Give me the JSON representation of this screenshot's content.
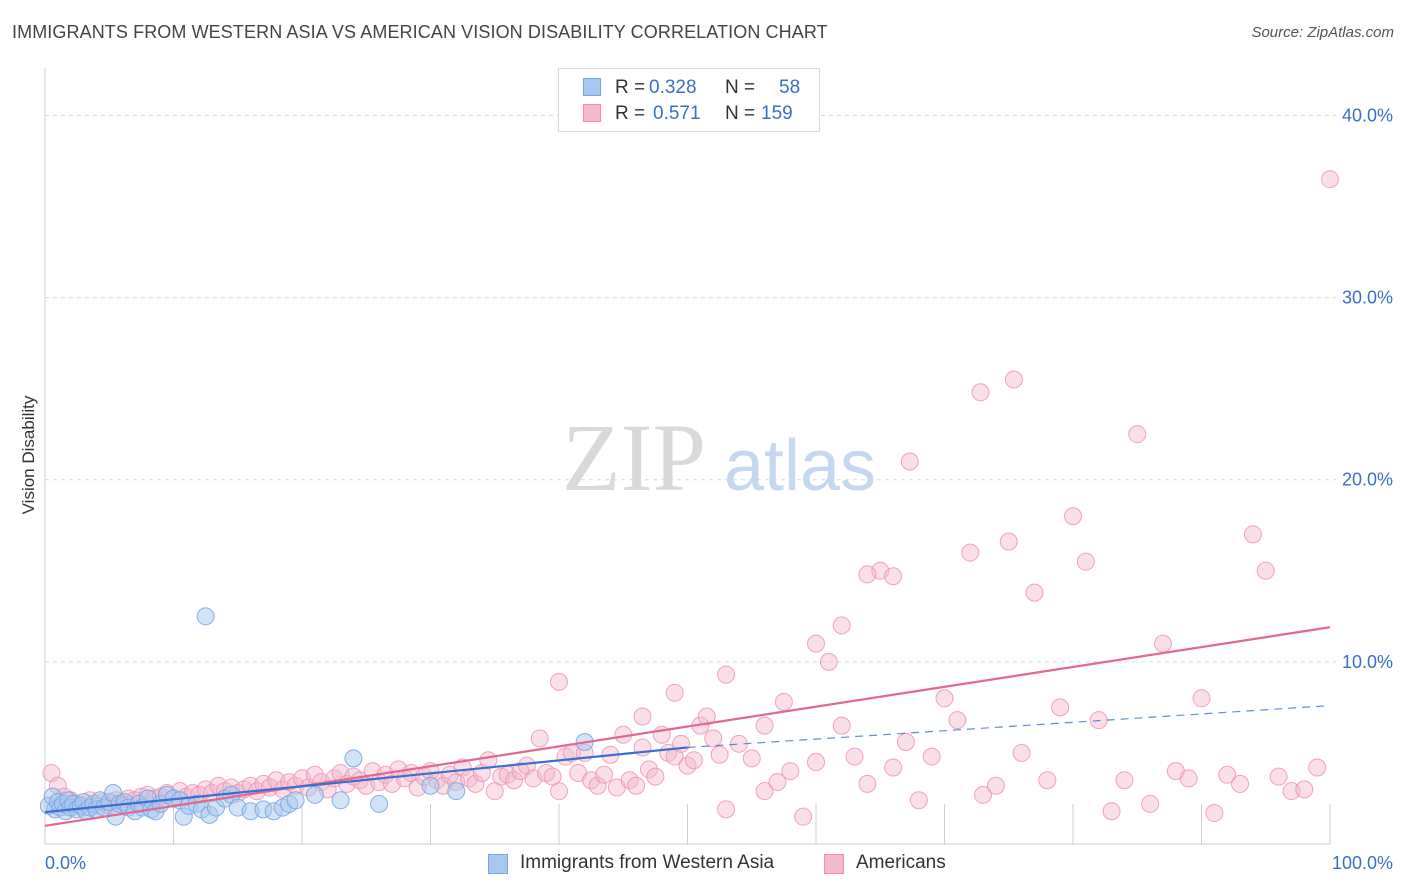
{
  "header": {
    "title": "IMMIGRANTS FROM WESTERN ASIA VS AMERICAN VISION DISABILITY CORRELATION CHART",
    "source": "Source: ZipAtlas.com"
  },
  "watermark": {
    "zip": "ZIP",
    "atlas": "atlas"
  },
  "legend_top": {
    "rows": [
      {
        "r_label": "R =",
        "r_value": "0.328",
        "n_label": "N =",
        "n_value": "58"
      },
      {
        "r_label": "R =",
        "r_value": "0.571",
        "n_label": "N =",
        "n_value": "159"
      }
    ]
  },
  "legend_bottom": {
    "items": [
      {
        "label": "Immigrants from Western Asia"
      },
      {
        "label": "Americans"
      }
    ]
  },
  "colors": {
    "blue_fill": "#a8c8f0",
    "blue_stroke": "#7aa6e0",
    "blue_line": "#3a6fd0",
    "pink_fill": "#f5b8cc",
    "pink_stroke": "#ec90b0",
    "pink_line": "#e2688f",
    "tick_label": "#3b6fc6",
    "grid": "#d9d9d9"
  },
  "chart_data": {
    "type": "scatter",
    "title": "IMMIGRANTS FROM WESTERN ASIA VS AMERICAN VISION DISABILITY CORRELATION CHART",
    "xlabel": "",
    "ylabel": "Vision Disability",
    "xlim": [
      0,
      100
    ],
    "ylim": [
      0,
      42
    ],
    "x_tick_labels": [
      "0.0%",
      "100.0%"
    ],
    "y_ticks": [
      10,
      20,
      30,
      40
    ],
    "y_tick_labels": [
      "10.0%",
      "20.0%",
      "30.0%",
      "40.0%"
    ],
    "grid": true,
    "series": [
      {
        "name": "Immigrants from Western Asia",
        "color": "#a8c8f0",
        "points": [
          [
            0.3,
            2.1
          ],
          [
            0.6,
            2.6
          ],
          [
            0.8,
            1.9
          ],
          [
            1.0,
            2.3
          ],
          [
            1.2,
            2.0
          ],
          [
            1.4,
            2.2
          ],
          [
            1.6,
            1.8
          ],
          [
            1.8,
            2.4
          ],
          [
            2.0,
            2.0
          ],
          [
            2.2,
            2.2
          ],
          [
            2.5,
            1.9
          ],
          [
            2.8,
            2.1
          ],
          [
            3.0,
            2.3
          ],
          [
            3.2,
            1.8
          ],
          [
            3.5,
            2.0
          ],
          [
            3.8,
            2.2
          ],
          [
            4.0,
            1.9
          ],
          [
            4.3,
            2.4
          ],
          [
            4.6,
            2.0
          ],
          [
            5.0,
            2.3
          ],
          [
            5.3,
            2.8
          ],
          [
            5.5,
            1.5
          ],
          [
            5.8,
            2.2
          ],
          [
            6.2,
            2.3
          ],
          [
            6.5,
            2.0
          ],
          [
            7.0,
            1.8
          ],
          [
            7.3,
            2.2
          ],
          [
            7.6,
            2.0
          ],
          [
            8.0,
            2.5
          ],
          [
            8.3,
            1.9
          ],
          [
            8.6,
            1.8
          ],
          [
            9.0,
            2.2
          ],
          [
            9.5,
            2.7
          ],
          [
            10.0,
            2.5
          ],
          [
            10.5,
            2.4
          ],
          [
            10.8,
            1.5
          ],
          [
            11.2,
            2.1
          ],
          [
            11.8,
            2.2
          ],
          [
            12.2,
            1.9
          ],
          [
            12.5,
            12.5
          ],
          [
            12.8,
            1.6
          ],
          [
            13.3,
            2.0
          ],
          [
            14.0,
            2.5
          ],
          [
            14.5,
            2.7
          ],
          [
            15.0,
            2.0
          ],
          [
            16.0,
            1.8
          ],
          [
            17.0,
            1.9
          ],
          [
            17.8,
            1.8
          ],
          [
            18.5,
            2.0
          ],
          [
            19.0,
            2.2
          ],
          [
            19.5,
            2.4
          ],
          [
            21.0,
            2.7
          ],
          [
            23.0,
            2.4
          ],
          [
            24.0,
            4.7
          ],
          [
            26.0,
            2.2
          ],
          [
            30.0,
            3.2
          ],
          [
            32.0,
            2.9
          ],
          [
            42.0,
            5.6
          ]
        ]
      },
      {
        "name": "Americans",
        "color": "#f5b8cc",
        "points": [
          [
            0.5,
            3.9
          ],
          [
            1.0,
            3.2
          ],
          [
            1.5,
            2.6
          ],
          [
            2.0,
            2.4
          ],
          [
            2.5,
            2.2
          ],
          [
            3.0,
            2.0
          ],
          [
            3.5,
            2.4
          ],
          [
            4.0,
            2.1
          ],
          [
            4.5,
            2.3
          ],
          [
            5.0,
            2.1
          ],
          [
            5.5,
            2.4
          ],
          [
            6.0,
            2.2
          ],
          [
            6.5,
            2.5
          ],
          [
            7.0,
            2.4
          ],
          [
            7.5,
            2.6
          ],
          [
            8.0,
            2.7
          ],
          [
            8.5,
            2.5
          ],
          [
            9.0,
            2.6
          ],
          [
            9.5,
            2.8
          ],
          [
            10.0,
            2.5
          ],
          [
            10.5,
            2.9
          ],
          [
            11.0,
            2.6
          ],
          [
            11.5,
            2.8
          ],
          [
            12.0,
            2.7
          ],
          [
            12.5,
            3.0
          ],
          [
            13.0,
            2.8
          ],
          [
            13.5,
            3.2
          ],
          [
            14.0,
            2.9
          ],
          [
            14.5,
            3.1
          ],
          [
            15.0,
            2.8
          ],
          [
            15.5,
            3.0
          ],
          [
            16.0,
            3.2
          ],
          [
            16.5,
            2.9
          ],
          [
            17.0,
            3.3
          ],
          [
            17.5,
            3.1
          ],
          [
            18.0,
            3.5
          ],
          [
            18.5,
            3.0
          ],
          [
            19.0,
            3.4
          ],
          [
            19.5,
            3.2
          ],
          [
            20.0,
            3.6
          ],
          [
            20.5,
            3.1
          ],
          [
            21.0,
            3.8
          ],
          [
            21.5,
            3.4
          ],
          [
            22.0,
            3.0
          ],
          [
            22.5,
            3.6
          ],
          [
            23.0,
            3.9
          ],
          [
            23.5,
            3.3
          ],
          [
            24.0,
            3.7
          ],
          [
            24.5,
            3.5
          ],
          [
            25.0,
            3.2
          ],
          [
            25.5,
            4.0
          ],
          [
            26.0,
            3.4
          ],
          [
            26.5,
            3.8
          ],
          [
            27.0,
            3.3
          ],
          [
            27.5,
            4.1
          ],
          [
            28.0,
            3.6
          ],
          [
            28.5,
            3.9
          ],
          [
            29.0,
            3.1
          ],
          [
            29.5,
            3.7
          ],
          [
            30.0,
            4.0
          ],
          [
            30.5,
            3.5
          ],
          [
            31.0,
            3.2
          ],
          [
            31.5,
            3.8
          ],
          [
            32.0,
            3.4
          ],
          [
            32.5,
            4.2
          ],
          [
            33.0,
            3.6
          ],
          [
            33.5,
            3.3
          ],
          [
            34.0,
            3.9
          ],
          [
            34.5,
            4.6
          ],
          [
            35.0,
            2.9
          ],
          [
            35.5,
            3.7
          ],
          [
            36.0,
            3.8
          ],
          [
            36.5,
            3.5
          ],
          [
            37.0,
            4.0
          ],
          [
            37.5,
            4.3
          ],
          [
            38.0,
            3.6
          ],
          [
            38.5,
            5.8
          ],
          [
            39.0,
            3.9
          ],
          [
            39.5,
            3.7
          ],
          [
            40.0,
            2.9
          ],
          [
            40.5,
            4.8
          ],
          [
            41.0,
            5.0
          ],
          [
            41.5,
            3.9
          ],
          [
            42.0,
            5.0
          ],
          [
            42.5,
            3.5
          ],
          [
            43.0,
            3.2
          ],
          [
            43.5,
            3.8
          ],
          [
            44.0,
            4.9
          ],
          [
            44.5,
            3.1
          ],
          [
            45.0,
            6.0
          ],
          [
            45.5,
            3.5
          ],
          [
            46.0,
            3.2
          ],
          [
            46.5,
            5.3
          ],
          [
            47.0,
            4.1
          ],
          [
            47.5,
            3.7
          ],
          [
            48.0,
            6.0
          ],
          [
            48.5,
            5.0
          ],
          [
            49.0,
            4.8
          ],
          [
            49.5,
            5.5
          ],
          [
            50.0,
            4.3
          ],
          [
            50.5,
            4.6
          ],
          [
            51.0,
            6.5
          ],
          [
            51.5,
            7.0
          ],
          [
            52.0,
            5.8
          ],
          [
            52.5,
            4.9
          ],
          [
            53.0,
            1.9
          ],
          [
            54.0,
            5.5
          ],
          [
            55.0,
            4.7
          ],
          [
            56.0,
            2.9
          ],
          [
            57.0,
            3.4
          ],
          [
            58.0,
            4.0
          ],
          [
            59.0,
            1.5
          ],
          [
            60.0,
            4.5
          ],
          [
            61.0,
            10.0
          ],
          [
            62.0,
            6.5
          ],
          [
            63.0,
            4.8
          ],
          [
            64.0,
            3.3
          ],
          [
            65.0,
            15.0
          ],
          [
            66.0,
            4.2
          ],
          [
            67.0,
            5.6
          ],
          [
            68.0,
            2.4
          ],
          [
            69.0,
            4.8
          ],
          [
            70.0,
            8.0
          ],
          [
            71.0,
            6.8
          ],
          [
            72.0,
            16.0
          ],
          [
            73.0,
            2.7
          ],
          [
            74.0,
            3.2
          ],
          [
            75.0,
            16.6
          ],
          [
            76.0,
            5.0
          ],
          [
            77.0,
            13.8
          ],
          [
            78.0,
            3.5
          ],
          [
            79.0,
            7.5
          ],
          [
            80.0,
            18.0
          ],
          [
            81.0,
            15.5
          ],
          [
            82.0,
            6.8
          ],
          [
            83.0,
            1.8
          ],
          [
            84.0,
            3.5
          ],
          [
            85.0,
            22.5
          ],
          [
            86.0,
            2.2
          ],
          [
            87.0,
            11.0
          ],
          [
            88.0,
            4.0
          ],
          [
            89.0,
            3.6
          ],
          [
            90.0,
            8.0
          ],
          [
            91.0,
            1.7
          ],
          [
            92.0,
            3.8
          ],
          [
            93.0,
            3.3
          ],
          [
            94.0,
            17.0
          ],
          [
            95.0,
            15.0
          ],
          [
            96.0,
            3.7
          ],
          [
            97.0,
            2.9
          ],
          [
            98.0,
            3.0
          ],
          [
            99.0,
            4.2
          ],
          [
            72.8,
            24.8
          ],
          [
            75.4,
            25.5
          ],
          [
            67.3,
            21.0
          ],
          [
            64.0,
            14.8
          ],
          [
            62.0,
            12.0
          ],
          [
            60.0,
            11.0
          ],
          [
            53.0,
            9.3
          ],
          [
            56.0,
            6.5
          ],
          [
            100.0,
            36.5
          ],
          [
            66.0,
            14.7
          ],
          [
            57.5,
            7.8
          ],
          [
            49.0,
            8.3
          ],
          [
            46.5,
            7.0
          ],
          [
            40.0,
            8.9
          ]
        ]
      }
    ],
    "trend_lines": [
      {
        "series": "Immigrants from Western Asia",
        "x": [
          0,
          50
        ],
        "y": [
          1.75,
          5.3
        ],
        "dashed_extension_to": [
          100,
          7.6
        ]
      },
      {
        "series": "Americans",
        "x": [
          0,
          100
        ],
        "y": [
          1.0,
          11.9
        ]
      }
    ]
  }
}
